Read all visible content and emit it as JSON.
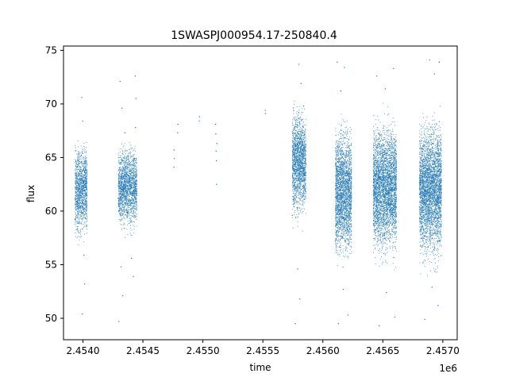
{
  "chart_data": {
    "type": "scatter",
    "title": "1SWASPJ000954.17-250840.4",
    "xlabel": "time",
    "ylabel": "flux",
    "x_scale_label": "1e6",
    "xlim": [
      2453838,
      2457120
    ],
    "ylim": [
      48.0,
      75.4
    ],
    "x_ticks": [
      2454000,
      2454500,
      2455000,
      2455500,
      2456000,
      2456500,
      2457000
    ],
    "x_tick_labels": [
      "2.4540",
      "2.4545",
      "2.4550",
      "2.4555",
      "2.4560",
      "2.4565",
      "2.4570"
    ],
    "y_ticks": [
      50,
      55,
      60,
      65,
      70,
      75
    ],
    "y_tick_labels": [
      "50",
      "55",
      "60",
      "65",
      "70",
      "75"
    ],
    "grid": false,
    "legend": "none",
    "marker_color": "#1f77b4",
    "series": [
      {
        "values": [
          {
            "x": 2453935,
            "y": 59.2
          },
          {
            "x": 2453946,
            "y": 62.8
          },
          {
            "x": 2453952,
            "y": 64.1
          },
          {
            "x": 2453960,
            "y": 61.5
          },
          {
            "x": 2453968,
            "y": 58.9
          },
          {
            "x": 2453975,
            "y": 63.7
          },
          {
            "x": 2453981,
            "y": 60.4
          },
          {
            "x": 2453987,
            "y": 65.2
          },
          {
            "x": 2453994,
            "y": 61.9
          },
          {
            "x": 2454001,
            "y": 59.8
          },
          {
            "x": 2454006,
            "y": 62.3
          },
          {
            "x": 2454012,
            "y": 64.6
          },
          {
            "x": 2454018,
            "y": 60.9
          },
          {
            "x": 2454024,
            "y": 63.1
          },
          {
            "x": 2454030,
            "y": 58.6
          },
          {
            "x": 2453990,
            "y": 70.6
          },
          {
            "x": 2453998,
            "y": 68.4
          },
          {
            "x": 2454008,
            "y": 55.9
          },
          {
            "x": 2453995,
            "y": 50.4
          },
          {
            "x": 2454015,
            "y": 53.2
          },
          {
            "x": 2454295,
            "y": 61.2
          },
          {
            "x": 2454305,
            "y": 63.9
          },
          {
            "x": 2454312,
            "y": 59.7
          },
          {
            "x": 2454320,
            "y": 64.8
          },
          {
            "x": 2454328,
            "y": 60.6
          },
          {
            "x": 2454336,
            "y": 62.5
          },
          {
            "x": 2454345,
            "y": 58.4
          },
          {
            "x": 2454352,
            "y": 63.3
          },
          {
            "x": 2454360,
            "y": 61.0
          },
          {
            "x": 2454368,
            "y": 65.1
          },
          {
            "x": 2454376,
            "y": 59.9
          },
          {
            "x": 2454384,
            "y": 62.0
          },
          {
            "x": 2454392,
            "y": 64.4
          },
          {
            "x": 2454400,
            "y": 60.2
          },
          {
            "x": 2454408,
            "y": 63.6
          },
          {
            "x": 2454416,
            "y": 59.5
          },
          {
            "x": 2454424,
            "y": 62.7
          },
          {
            "x": 2454432,
            "y": 64.9
          },
          {
            "x": 2454440,
            "y": 61.4
          },
          {
            "x": 2454448,
            "y": 60.1
          },
          {
            "x": 2454310,
            "y": 72.1
          },
          {
            "x": 2454325,
            "y": 69.6
          },
          {
            "x": 2454350,
            "y": 67.3
          },
          {
            "x": 2454436,
            "y": 72.6
          },
          {
            "x": 2454442,
            "y": 70.5
          },
          {
            "x": 2454438,
            "y": 67.8
          },
          {
            "x": 2454318,
            "y": 54.8
          },
          {
            "x": 2454332,
            "y": 52.1
          },
          {
            "x": 2454300,
            "y": 49.7
          },
          {
            "x": 2454405,
            "y": 55.6
          },
          {
            "x": 2454420,
            "y": 53.9
          },
          {
            "x": 2454758,
            "y": 64.1
          },
          {
            "x": 2454760,
            "y": 65.7
          },
          {
            "x": 2454762,
            "y": 64.9
          },
          {
            "x": 2454790,
            "y": 67.3
          },
          {
            "x": 2454792,
            "y": 68.1
          },
          {
            "x": 2454970,
            "y": 68.4
          },
          {
            "x": 2454972,
            "y": 68.8
          },
          {
            "x": 2455106,
            "y": 68.1
          },
          {
            "x": 2455108,
            "y": 67.2
          },
          {
            "x": 2455110,
            "y": 65.6
          },
          {
            "x": 2455112,
            "y": 64.7
          },
          {
            "x": 2455114,
            "y": 62.5
          },
          {
            "x": 2455116,
            "y": 66.3
          },
          {
            "x": 2455520,
            "y": 69.4
          },
          {
            "x": 2455522,
            "y": 69.1
          },
          {
            "x": 2455745,
            "y": 59.6
          },
          {
            "x": 2455755,
            "y": 62.4
          },
          {
            "x": 2455765,
            "y": 60.8
          },
          {
            "x": 2455775,
            "y": 63.9
          },
          {
            "x": 2455785,
            "y": 65.6
          },
          {
            "x": 2455795,
            "y": 67.2
          },
          {
            "x": 2455805,
            "y": 64.3
          },
          {
            "x": 2455815,
            "y": 66.8
          },
          {
            "x": 2455825,
            "y": 68.5
          },
          {
            "x": 2455835,
            "y": 65.1
          },
          {
            "x": 2455845,
            "y": 63.4
          },
          {
            "x": 2455855,
            "y": 66.0
          },
          {
            "x": 2455800,
            "y": 73.7
          },
          {
            "x": 2455818,
            "y": 71.9
          },
          {
            "x": 2455840,
            "y": 69.8
          },
          {
            "x": 2455790,
            "y": 54.6
          },
          {
            "x": 2455808,
            "y": 51.8
          },
          {
            "x": 2455770,
            "y": 49.5
          },
          {
            "x": 2456105,
            "y": 61.3
          },
          {
            "x": 2456115,
            "y": 58.7
          },
          {
            "x": 2456125,
            "y": 64.2
          },
          {
            "x": 2456135,
            "y": 60.1
          },
          {
            "x": 2456145,
            "y": 63.0
          },
          {
            "x": 2456155,
            "y": 57.9
          },
          {
            "x": 2456165,
            "y": 62.6
          },
          {
            "x": 2456175,
            "y": 59.4
          },
          {
            "x": 2456185,
            "y": 64.8
          },
          {
            "x": 2456195,
            "y": 61.7
          },
          {
            "x": 2456205,
            "y": 58.3
          },
          {
            "x": 2456215,
            "y": 63.5
          },
          {
            "x": 2456225,
            "y": 60.6
          },
          {
            "x": 2456235,
            "y": 62.1
          },
          {
            "x": 2456120,
            "y": 73.9
          },
          {
            "x": 2456150,
            "y": 71.2
          },
          {
            "x": 2456180,
            "y": 73.4
          },
          {
            "x": 2456130,
            "y": 49.5
          },
          {
            "x": 2456170,
            "y": 52.7
          },
          {
            "x": 2456210,
            "y": 50.3
          },
          {
            "x": 2456420,
            "y": 62.4
          },
          {
            "x": 2456432,
            "y": 58.6
          },
          {
            "x": 2456444,
            "y": 64.7
          },
          {
            "x": 2456456,
            "y": 60.3
          },
          {
            "x": 2456468,
            "y": 63.1
          },
          {
            "x": 2456480,
            "y": 57.8
          },
          {
            "x": 2456492,
            "y": 62.9
          },
          {
            "x": 2456504,
            "y": 59.2
          },
          {
            "x": 2456516,
            "y": 65.3
          },
          {
            "x": 2456528,
            "y": 61.6
          },
          {
            "x": 2456540,
            "y": 58.9
          },
          {
            "x": 2456552,
            "y": 63.8
          },
          {
            "x": 2456564,
            "y": 60.7
          },
          {
            "x": 2456576,
            "y": 62.2
          },
          {
            "x": 2456588,
            "y": 59.6
          },
          {
            "x": 2456600,
            "y": 64.0
          },
          {
            "x": 2456612,
            "y": 61.1
          },
          {
            "x": 2456450,
            "y": 72.6
          },
          {
            "x": 2456520,
            "y": 71.4
          },
          {
            "x": 2456590,
            "y": 73.3
          },
          {
            "x": 2456470,
            "y": 49.3
          },
          {
            "x": 2456530,
            "y": 52.4
          },
          {
            "x": 2456600,
            "y": 50.1
          },
          {
            "x": 2456805,
            "y": 60.4
          },
          {
            "x": 2456815,
            "y": 63.7
          },
          {
            "x": 2456825,
            "y": 58.5
          },
          {
            "x": 2456835,
            "y": 64.3
          },
          {
            "x": 2456845,
            "y": 61.0
          },
          {
            "x": 2456855,
            "y": 62.8
          },
          {
            "x": 2456865,
            "y": 57.6
          },
          {
            "x": 2456875,
            "y": 63.4
          },
          {
            "x": 2456885,
            "y": 59.9
          },
          {
            "x": 2456895,
            "y": 65.2
          },
          {
            "x": 2456905,
            "y": 61.8
          },
          {
            "x": 2456915,
            "y": 58.8
          },
          {
            "x": 2456925,
            "y": 63.9
          },
          {
            "x": 2456935,
            "y": 60.5
          },
          {
            "x": 2456945,
            "y": 62.4
          },
          {
            "x": 2456955,
            "y": 59.3
          },
          {
            "x": 2456965,
            "y": 64.6
          },
          {
            "x": 2456975,
            "y": 61.2
          },
          {
            "x": 2456985,
            "y": 62.9
          },
          {
            "x": 2456890,
            "y": 74.1
          },
          {
            "x": 2456930,
            "y": 72.8
          },
          {
            "x": 2456970,
            "y": 73.9
          },
          {
            "x": 2456850,
            "y": 49.9
          },
          {
            "x": 2456910,
            "y": 52.9
          },
          {
            "x": 2456960,
            "y": 51.2
          }
        ]
      }
    ],
    "dense_bands": [
      {
        "x_start": 2453935,
        "x_end": 2454035,
        "y_low": 58.6,
        "y_high": 65.3
      },
      {
        "x_start": 2454295,
        "x_end": 2454450,
        "y_low": 59.2,
        "y_high": 65.2
      },
      {
        "x_start": 2455745,
        "x_end": 2455860,
        "y_low": 60.5,
        "y_high": 68.5
      },
      {
        "x_start": 2456105,
        "x_end": 2456240,
        "y_low": 56.8,
        "y_high": 66.6
      },
      {
        "x_start": 2456420,
        "x_end": 2456615,
        "y_low": 57.2,
        "y_high": 66.9
      },
      {
        "x_start": 2456805,
        "x_end": 2456990,
        "y_low": 56.8,
        "y_high": 66.9
      }
    ]
  }
}
